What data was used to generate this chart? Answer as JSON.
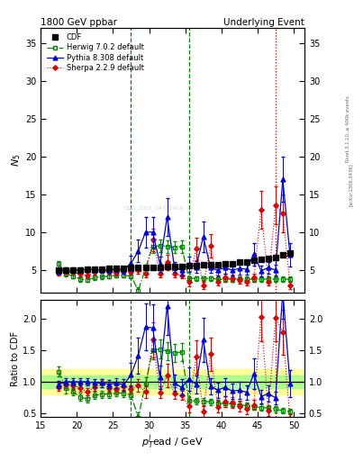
{
  "title_left": "1800 GeV ppbar",
  "title_right": "Underlying Event",
  "ylabel_main": "$N_5$",
  "ylabel_ratio": "Ratio to CDF",
  "xlabel": "$p_T^{l}$ead / GeV",
  "right_label": "Rivet 3.1.10, ≥ 400k events",
  "right_label2": "[arXiv:1306.3436]",
  "watermark": "CDS_2001_S4751469",
  "cdf_x": [
    17.5,
    18.5,
    19.5,
    20.5,
    21.5,
    22.5,
    23.5,
    24.5,
    25.5,
    26.5,
    27.5,
    28.5,
    29.5,
    30.5,
    31.5,
    32.5,
    33.5,
    34.5,
    35.5,
    36.5,
    37.5,
    38.5,
    39.5,
    40.5,
    41.5,
    42.5,
    43.5,
    44.5,
    45.5,
    46.5,
    47.5,
    48.5,
    49.5
  ],
  "cdf_y": [
    5.0,
    5.0,
    5.0,
    5.0,
    5.1,
    5.1,
    5.1,
    5.2,
    5.2,
    5.25,
    5.3,
    5.3,
    5.35,
    5.4,
    5.4,
    5.45,
    5.5,
    5.5,
    5.55,
    5.6,
    5.65,
    5.7,
    5.75,
    5.8,
    5.85,
    6.0,
    6.1,
    6.3,
    6.4,
    6.5,
    6.7,
    7.0,
    7.2
  ],
  "cdf_yerr": [
    0.15,
    0.15,
    0.15,
    0.15,
    0.15,
    0.15,
    0.15,
    0.15,
    0.15,
    0.15,
    0.15,
    0.15,
    0.15,
    0.15,
    0.15,
    0.15,
    0.15,
    0.15,
    0.15,
    0.15,
    0.15,
    0.15,
    0.15,
    0.15,
    0.15,
    0.15,
    0.15,
    0.15,
    0.15,
    0.15,
    0.15,
    0.15,
    0.15
  ],
  "herwig_x": [
    17.5,
    18.5,
    19.5,
    20.5,
    21.5,
    22.5,
    23.5,
    24.5,
    25.5,
    26.5,
    27.5,
    28.5,
    29.5,
    30.5,
    31.5,
    32.5,
    33.5,
    34.5,
    35.5,
    36.5,
    37.5,
    38.5,
    39.5,
    40.5,
    41.5,
    42.5,
    43.5,
    44.5,
    45.5,
    46.5,
    47.5,
    48.5,
    49.5
  ],
  "herwig_y": [
    5.8,
    4.5,
    4.2,
    3.8,
    3.7,
    4.0,
    4.1,
    4.2,
    4.3,
    4.3,
    4.2,
    2.3,
    5.2,
    8.1,
    8.2,
    8.1,
    8.0,
    8.1,
    3.9,
    3.9,
    3.9,
    3.9,
    3.8,
    3.8,
    3.8,
    3.8,
    3.8,
    3.8,
    3.8,
    3.8,
    3.8,
    3.8,
    3.8
  ],
  "herwig_yerr": [
    0.4,
    0.4,
    0.3,
    0.3,
    0.3,
    0.3,
    0.3,
    0.3,
    0.3,
    0.3,
    0.3,
    0.4,
    0.5,
    0.8,
    0.8,
    0.8,
    0.8,
    0.8,
    0.3,
    0.3,
    0.3,
    0.3,
    0.3,
    0.3,
    0.3,
    0.3,
    0.3,
    0.3,
    0.3,
    0.3,
    0.3,
    0.3,
    0.3
  ],
  "pythia_x": [
    17.5,
    18.5,
    19.5,
    20.5,
    21.5,
    22.5,
    23.5,
    24.5,
    25.5,
    26.5,
    27.5,
    28.5,
    29.5,
    30.5,
    31.5,
    32.5,
    33.5,
    34.5,
    35.5,
    36.5,
    37.5,
    38.5,
    39.5,
    40.5,
    41.5,
    42.5,
    43.5,
    44.5,
    45.5,
    46.5,
    47.5,
    48.5,
    49.5
  ],
  "pythia_y": [
    4.8,
    5.0,
    5.0,
    5.0,
    5.1,
    5.0,
    5.0,
    5.0,
    5.1,
    5.0,
    5.9,
    7.5,
    10.0,
    10.0,
    5.8,
    12.0,
    5.4,
    5.0,
    5.8,
    5.4,
    9.4,
    5.3,
    5.0,
    5.3,
    5.0,
    5.2,
    5.1,
    7.1,
    4.9,
    5.3,
    5.0,
    17.0,
    7.0
  ],
  "pythia_yerr": [
    0.3,
    0.3,
    0.3,
    0.3,
    0.3,
    0.3,
    0.35,
    0.35,
    0.4,
    0.5,
    1.0,
    1.5,
    2.0,
    2.0,
    1.0,
    2.5,
    0.7,
    0.7,
    1.0,
    0.8,
    2.0,
    0.7,
    0.7,
    0.8,
    0.7,
    0.8,
    0.7,
    1.5,
    0.7,
    0.8,
    0.7,
    3.0,
    1.5
  ],
  "sherpa_x": [
    17.5,
    18.5,
    19.5,
    20.5,
    21.5,
    22.5,
    23.5,
    24.5,
    25.5,
    26.5,
    27.5,
    28.5,
    29.5,
    30.5,
    31.5,
    32.5,
    33.5,
    34.5,
    35.5,
    36.5,
    37.5,
    38.5,
    39.5,
    40.5,
    41.5,
    42.5,
    43.5,
    44.5,
    45.5,
    46.5,
    47.5,
    48.5,
    49.5
  ],
  "sherpa_y": [
    4.6,
    4.8,
    4.7,
    4.5,
    4.3,
    4.7,
    5.0,
    4.7,
    4.6,
    4.9,
    4.7,
    5.0,
    4.5,
    9.0,
    4.5,
    6.0,
    4.5,
    4.3,
    3.4,
    7.8,
    3.0,
    8.2,
    3.5,
    4.0,
    3.9,
    3.7,
    3.5,
    4.0,
    13.0,
    3.5,
    13.5,
    12.5,
    3.0
  ],
  "sherpa_yerr": [
    0.3,
    0.3,
    0.3,
    0.3,
    0.3,
    0.3,
    0.3,
    0.3,
    0.3,
    0.3,
    0.3,
    0.5,
    0.5,
    1.5,
    0.5,
    1.0,
    0.5,
    0.4,
    0.5,
    1.5,
    0.5,
    1.5,
    0.5,
    0.5,
    0.5,
    0.5,
    0.5,
    0.5,
    2.5,
    0.5,
    2.5,
    2.5,
    0.5
  ],
  "vline_green1": 27.5,
  "vline_green2": 35.5,
  "vline_red": 47.5,
  "main_ylim": [
    2.0,
    37.0
  ],
  "main_yticks": [
    5,
    10,
    15,
    20,
    25,
    30,
    35
  ],
  "ratio_ylim": [
    0.44,
    2.3
  ],
  "ratio_yticks": [
    0.5,
    1.0,
    1.5,
    2.0
  ],
  "cdf_color": "#000000",
  "herwig_color": "#008800",
  "pythia_color": "#0000dd",
  "sherpa_color": "#dd0000",
  "band_green": [
    0.9,
    1.1
  ],
  "band_yellow": [
    0.8,
    1.2
  ],
  "xlim": [
    15.5,
    51.5
  ],
  "xticks": [
    15,
    20,
    25,
    30,
    35,
    40,
    45,
    50
  ]
}
